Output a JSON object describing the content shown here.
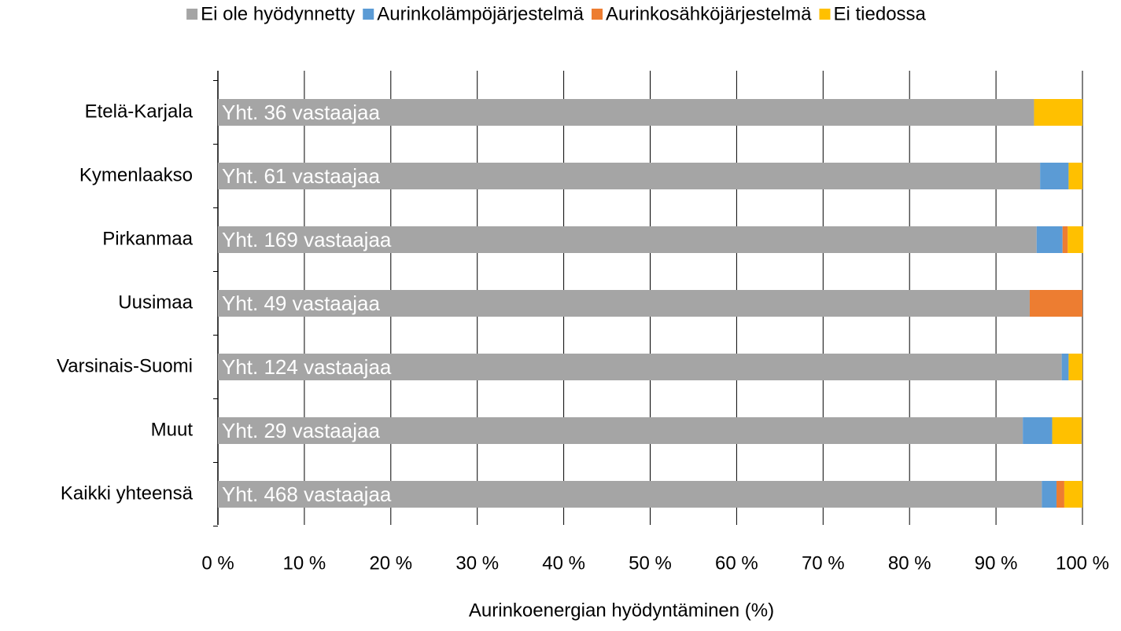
{
  "chart_data": {
    "type": "stacked-bar-horizontal",
    "x_label": "Aurinkoenergian hyödyntäminen (%)",
    "categories": [
      "Etelä-Karjala",
      "Kymenlaakso",
      "Pirkanmaa",
      "Uusimaa",
      "Varsinais-Suomi",
      "Muut",
      "Kaikki yhteensä"
    ],
    "annotations": [
      "Yht. 36 vastaajaa",
      "Yht. 61 vastaajaa",
      "Yht. 169 vastaajaa",
      "Yht. 49 vastaajaa",
      "Yht. 124 vastaajaa",
      "Yht. 29 vastaajaa",
      "Yht. 468 vastaajaa"
    ],
    "series": [
      {
        "name": "Ei ole hyödynnetty",
        "color": "#a5a5a5",
        "values": [
          94.4,
          95.1,
          94.7,
          93.9,
          97.6,
          93.1,
          95.3
        ]
      },
      {
        "name": "Aurinkolämpöjärjestelmä",
        "color": "#5b9bd5",
        "values": [
          0,
          3.3,
          3.0,
          0,
          0.8,
          3.4,
          1.7
        ]
      },
      {
        "name": "Aurinkosähköjärjestelmä",
        "color": "#ed7d31",
        "values": [
          0,
          0,
          0.6,
          6.1,
          0,
          0,
          0.9
        ]
      },
      {
        "name": "Ei tiedossa",
        "color": "#ffc000",
        "values": [
          5.6,
          1.6,
          1.8,
          0,
          1.6,
          3.4,
          2.1
        ]
      }
    ],
    "xlim": [
      0,
      100
    ],
    "xticks": [
      {
        "value": 0,
        "label": "0 %"
      },
      {
        "value": 10,
        "label": "10 %"
      },
      {
        "value": 20,
        "label": "20 %"
      },
      {
        "value": 30,
        "label": "30 %"
      },
      {
        "value": 40,
        "label": "40 %"
      },
      {
        "value": 50,
        "label": "50 %"
      },
      {
        "value": 60,
        "label": "60 %"
      },
      {
        "value": 70,
        "label": "70 %"
      },
      {
        "value": 80,
        "label": "80 %"
      },
      {
        "value": 90,
        "label": "90 %"
      },
      {
        "value": 100,
        "label": "100 %"
      }
    ],
    "grid": true,
    "legend": "top"
  }
}
